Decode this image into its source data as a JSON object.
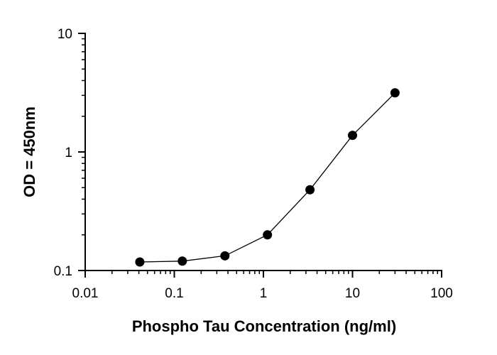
{
  "chart_data": {
    "type": "scatter",
    "title": "",
    "xlabel": "Phospho Tau Concentration (ng/ml)",
    "ylabel": "OD = 450nm",
    "xscale": "log",
    "yscale": "log",
    "xlim": [
      0.01,
      100
    ],
    "ylim": [
      0.1,
      10
    ],
    "x_ticks": [
      0.01,
      0.1,
      1,
      10,
      100
    ],
    "x_tick_labels": [
      "0.01",
      "0.1",
      "1",
      "10",
      "100"
    ],
    "y_ticks": [
      0.1,
      1,
      10
    ],
    "y_tick_labels": [
      "0.1",
      "1",
      "10"
    ],
    "grid": false,
    "legend": "none",
    "marker_color": "#000000",
    "line_color": "#000000",
    "series": [
      {
        "x": [
          0.041,
          0.123,
          0.37,
          1.11,
          3.33,
          10,
          30
        ],
        "y": [
          0.118,
          0.12,
          0.133,
          0.2,
          0.48,
          1.38,
          3.15
        ]
      }
    ]
  }
}
